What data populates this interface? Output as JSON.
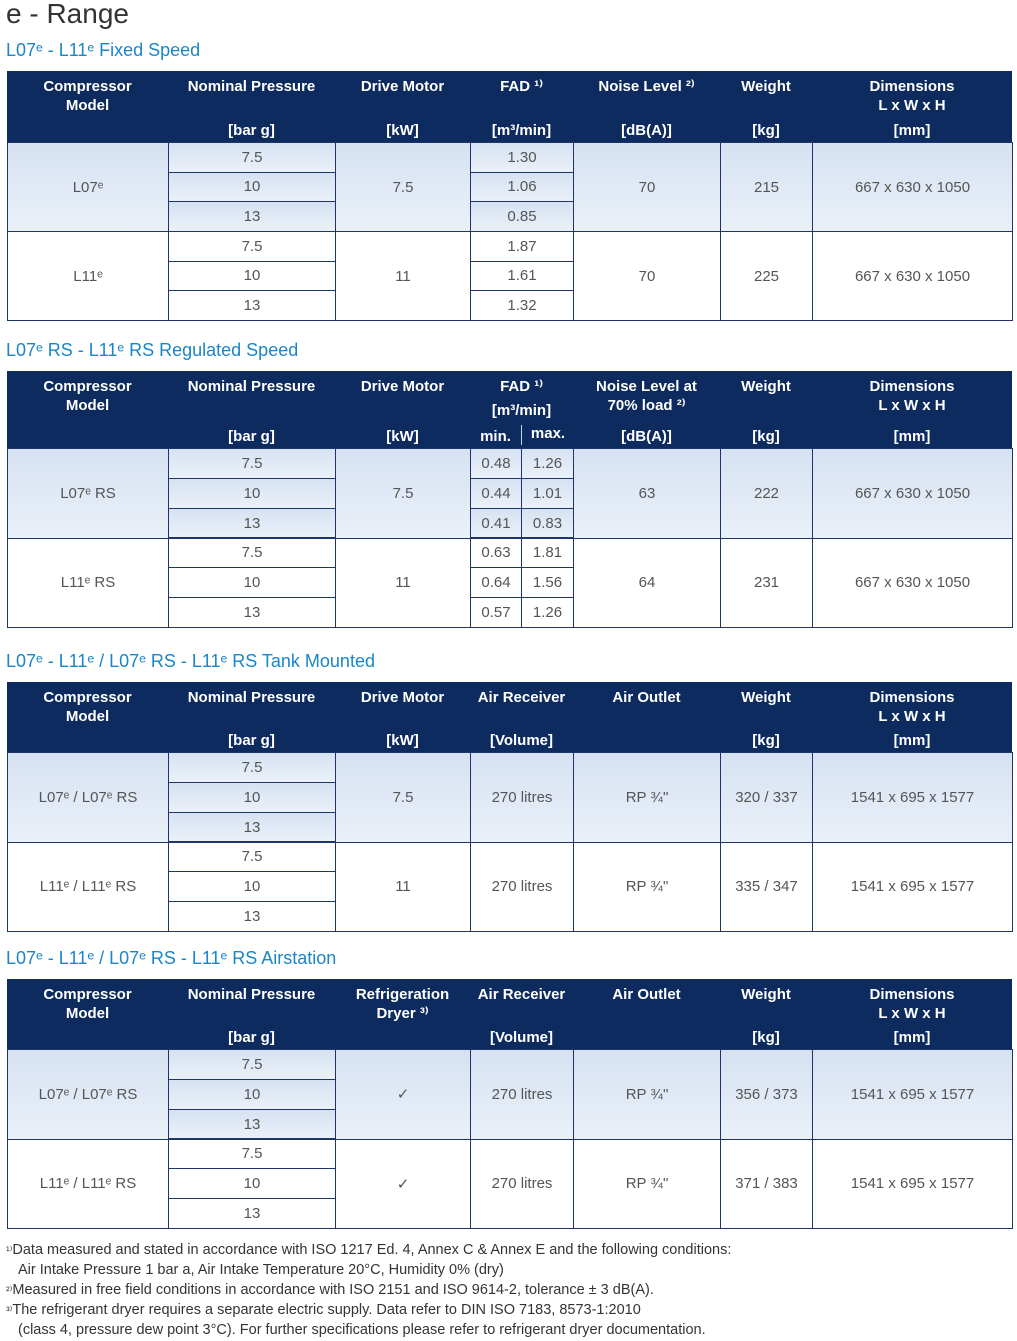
{
  "title": "e - Range",
  "tables": [
    {
      "heading": "L07ᵉ - L11ᵉ Fixed Speed",
      "columns": [
        {
          "label": "Compressor\nModel"
        },
        {
          "label": "Nominal Pressure",
          "unit": "[bar g]"
        },
        {
          "label": "Drive Motor",
          "unit": "[kW]"
        },
        {
          "label": "FAD ¹⁾",
          "unit": "[m³/min]"
        },
        {
          "label": "Noise Level ²⁾",
          "unit": "[dB(A)]"
        },
        {
          "label": "Weight",
          "unit": "[kg]"
        },
        {
          "label": "Dimensions\nL x W x H",
          "unit": "[mm]"
        }
      ],
      "groups": [
        {
          "cells": [
            "L07ᵉ",
            [
              "7.5",
              "10",
              "13"
            ],
            "7.5",
            [
              "1.30",
              "1.06",
              "0.85"
            ],
            "70",
            "215",
            "667 x 630 x 1050"
          ]
        },
        {
          "cells": [
            "L11ᵉ",
            [
              "7.5",
              "10",
              "13"
            ],
            "11",
            [
              "1.87",
              "1.61",
              "1.32"
            ],
            "70",
            "225",
            "667 x 630 x 1050"
          ]
        }
      ]
    },
    {
      "heading": "L07ᵉ RS - L11ᵉ RS Regulated Speed",
      "columns": [
        {
          "label": "Compressor\nModel"
        },
        {
          "label": "Nominal Pressure",
          "unit": "[bar g]"
        },
        {
          "label": "Drive Motor",
          "unit": "[kW]"
        },
        {
          "label": "FAD ¹⁾",
          "unit": "[m³/min]",
          "sub": [
            "min.",
            "max."
          ]
        },
        {
          "label": "Noise Level at\n70% load ²⁾",
          "unit": "[dB(A)]"
        },
        {
          "label": "Weight",
          "unit": "[kg]"
        },
        {
          "label": "Dimensions\nL x W x H",
          "unit": "[mm]"
        }
      ],
      "groups": [
        {
          "cells": [
            "L07ᵉ RS",
            [
              "7.5",
              "10",
              "13"
            ],
            "7.5",
            [
              [
                "0.48",
                "1.26"
              ],
              [
                "0.44",
                "1.01"
              ],
              [
                "0.41",
                "0.83"
              ]
            ],
            "63",
            "222",
            "667 x 630 x 1050"
          ]
        },
        {
          "cells": [
            "L11ᵉ RS",
            [
              "7.5",
              "10",
              "13"
            ],
            "11",
            [
              [
                "0.63",
                "1.81"
              ],
              [
                "0.64",
                "1.56"
              ],
              [
                "0.57",
                "1.26"
              ]
            ],
            "64",
            "231",
            "667 x 630 x 1050"
          ]
        }
      ]
    },
    {
      "heading": "L07ᵉ - L11ᵉ / L07ᵉ RS - L11ᵉ RS Tank Mounted",
      "columns": [
        {
          "label": "Compressor\nModel"
        },
        {
          "label": "Nominal Pressure",
          "unit": "[bar g]"
        },
        {
          "label": "Drive Motor",
          "unit": "[kW]"
        },
        {
          "label": "Air Receiver",
          "unit": "[Volume]"
        },
        {
          "label": "Air Outlet"
        },
        {
          "label": "Weight",
          "unit": "[kg]"
        },
        {
          "label": "Dimensions\nL x W x H",
          "unit": "[mm]"
        }
      ],
      "groups": [
        {
          "cells": [
            "L07ᵉ / L07ᵉ RS",
            [
              "7.5",
              "10",
              "13"
            ],
            "7.5",
            "270 litres",
            "RP ¾\"",
            "320 / 337",
            "1541 x 695 x 1577"
          ]
        },
        {
          "cells": [
            "L11ᵉ / L11ᵉ RS",
            [
              "7.5",
              "10",
              "13"
            ],
            "11",
            "270 litres",
            "RP ¾\"",
            "335 / 347",
            "1541 x 695 x 1577"
          ]
        }
      ]
    },
    {
      "heading": "L07ᵉ - L11ᵉ / L07ᵉ RS - L11ᵉ RS Airstation",
      "columns": [
        {
          "label": "Compressor\nModel"
        },
        {
          "label": "Nominal Pressure",
          "unit": "[bar g]"
        },
        {
          "label": "Refrigeration\nDryer ³⁾"
        },
        {
          "label": "Air Receiver",
          "unit": "[Volume]"
        },
        {
          "label": "Air Outlet"
        },
        {
          "label": "Weight",
          "unit": "[kg]"
        },
        {
          "label": "Dimensions\nL x W x H",
          "unit": "[mm]"
        }
      ],
      "groups": [
        {
          "cells": [
            "L07ᵉ / L07ᵉ RS",
            [
              "7.5",
              "10",
              "13"
            ],
            "✓",
            "270 litres",
            "RP ¾\"",
            "356 / 373",
            "1541 x 695 x 1577"
          ]
        },
        {
          "cells": [
            "L11ᵉ / L11ᵉ RS",
            [
              "7.5",
              "10",
              "13"
            ],
            "✓",
            "270 litres",
            "RP ¾\"",
            "371 / 383",
            "1541 x 695 x 1577"
          ]
        }
      ]
    }
  ],
  "footnotes": [
    {
      "mark": "¹⁾",
      "lines": [
        "Data measured and stated in accordance with ISO 1217 Ed. 4, Annex C & Annex E and the following conditions:",
        "Air Intake Pressure 1 bar a, Air Intake Temperature 20°C, Humidity 0% (dry)"
      ]
    },
    {
      "mark": "²⁾",
      "lines": [
        "Measured in free field conditions in accordance with ISO 2151 and ISO 9614-2, tolerance ± 3 dB(A)."
      ]
    },
    {
      "mark": "³⁾",
      "lines": [
        "The refrigerant dryer requires a separate electric supply. Data refer to DIN ISO 7183, 8573-1:2010",
        "(class 4, pressure dew point 3°C). For further specifications please refer to refrigerant dryer documentation."
      ]
    }
  ]
}
